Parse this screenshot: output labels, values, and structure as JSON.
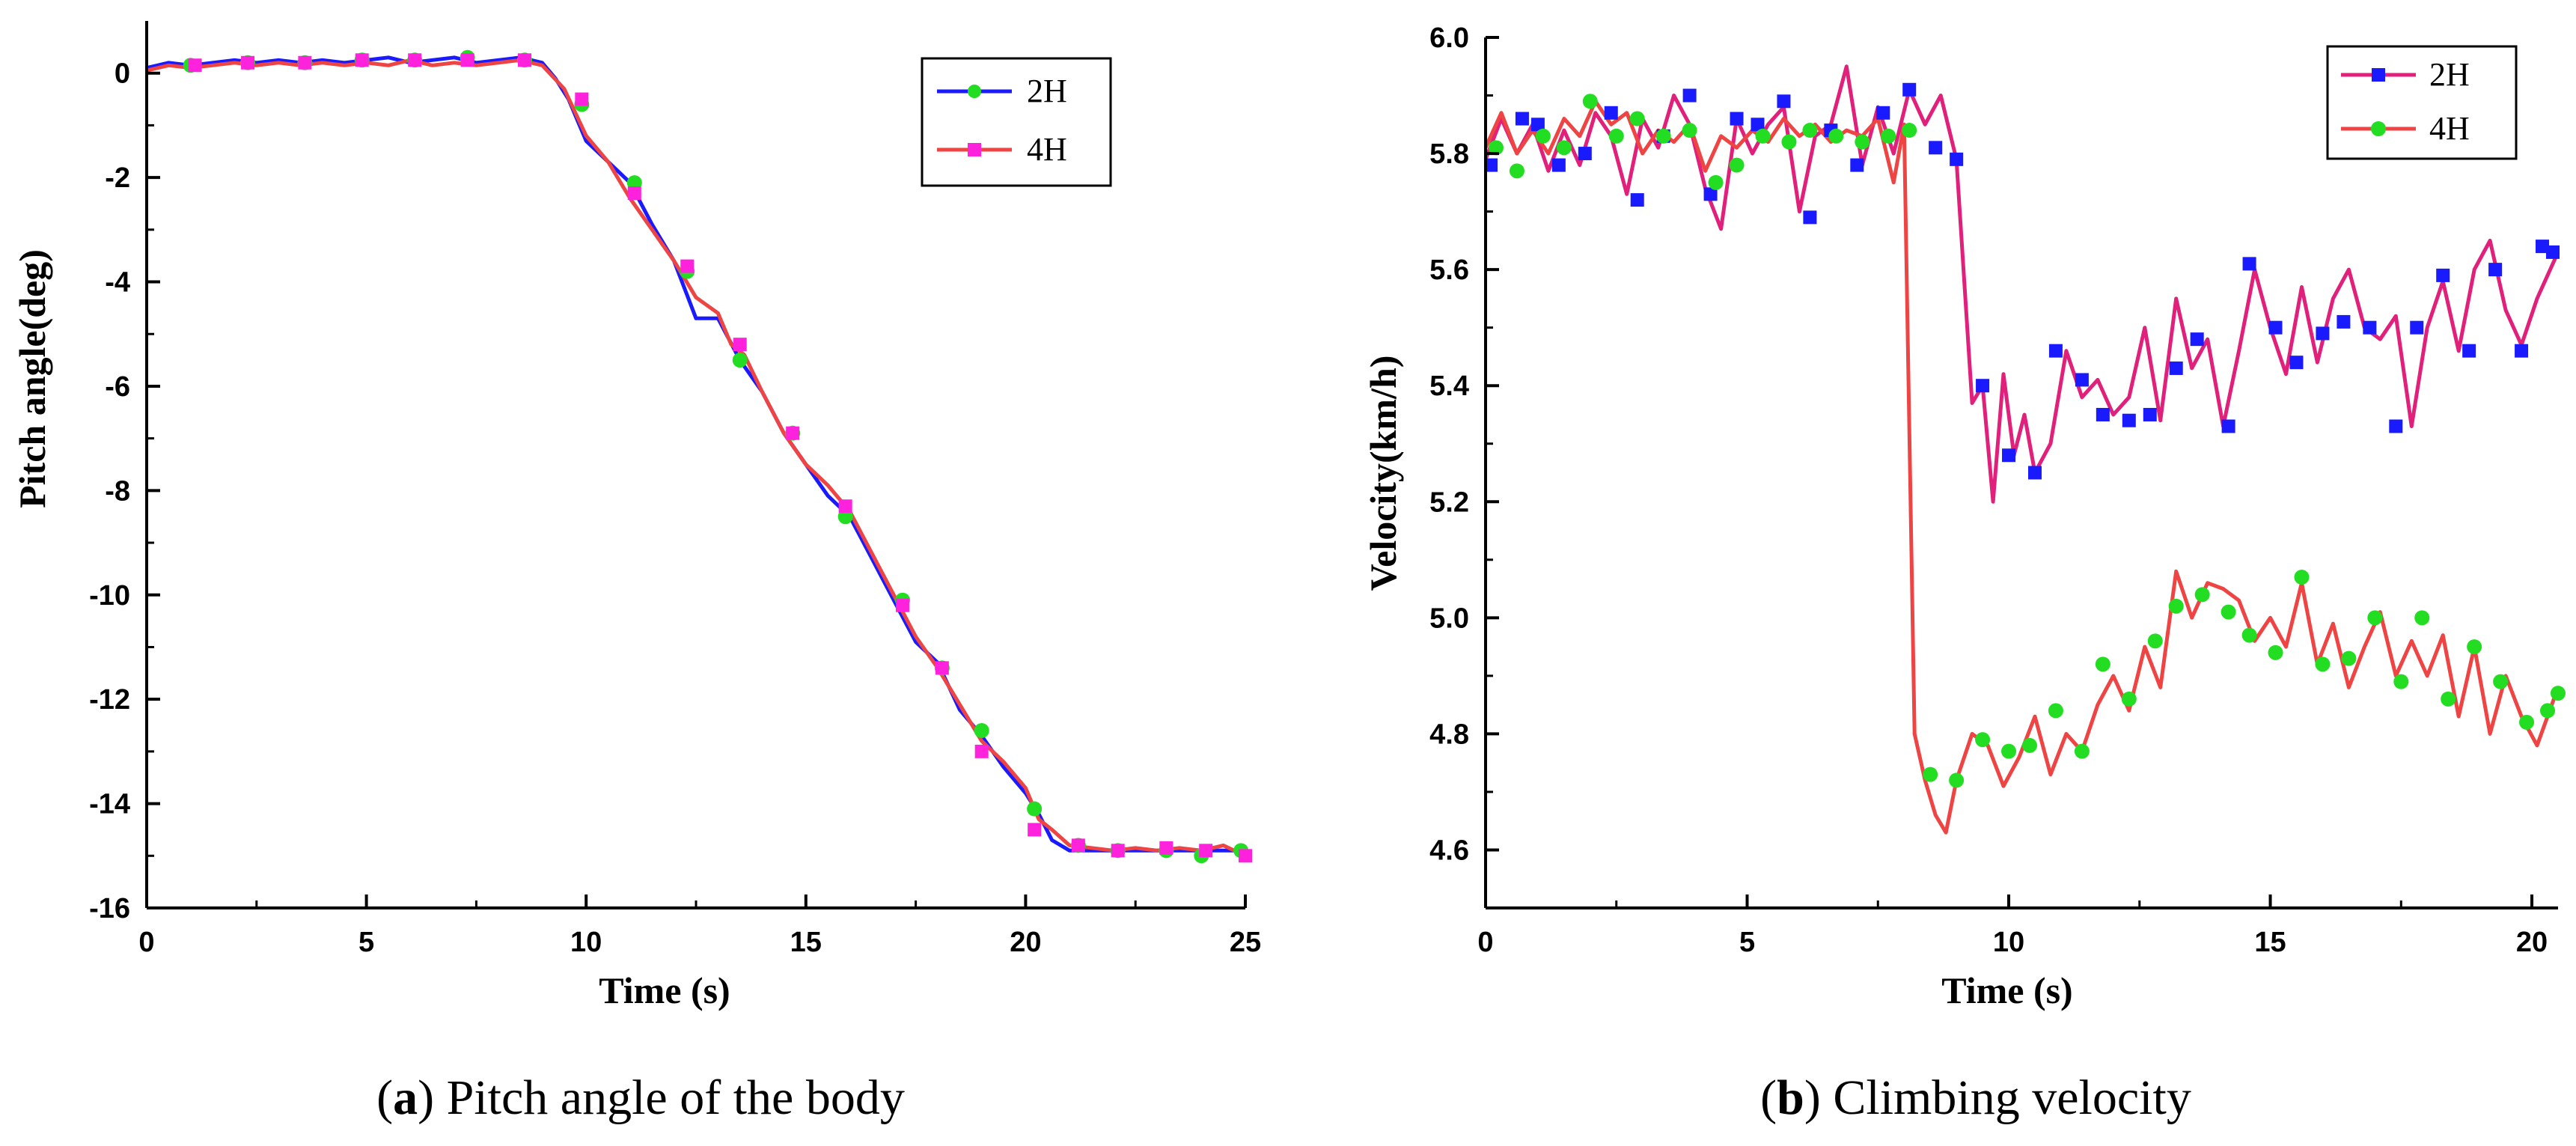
{
  "chart_data": [
    {
      "type": "line",
      "caption_letter": "a",
      "caption_text": "Pitch angle of the body",
      "xlabel": "Time (s)",
      "ylabel": "Pitch angle(deg)",
      "xlim": [
        0,
        25
      ],
      "ylim": [
        -16,
        1
      ],
      "xticks": [
        0,
        5,
        10,
        15,
        20,
        25
      ],
      "yticks": [
        0,
        -2,
        -4,
        -6,
        -8,
        -10,
        -12,
        -14,
        -16
      ],
      "legend_position": "top-right",
      "series": [
        {
          "name": "2H",
          "color": "#1a1aff",
          "marker": "circle",
          "marker_color": "#22dd22",
          "x": [
            0,
            0.5,
            1,
            1.5,
            2,
            2.5,
            3,
            3.5,
            4,
            4.5,
            5,
            5.5,
            6,
            6.5,
            7,
            7.5,
            8,
            8.5,
            9,
            9.3,
            9.6,
            10,
            10.5,
            11,
            11.5,
            12,
            12.5,
            13,
            13.5,
            14,
            14.5,
            15,
            15.5,
            16,
            16.5,
            17,
            17.5,
            18,
            18.5,
            19,
            19.5,
            20,
            20.3,
            20.6,
            21,
            21.5,
            22,
            22.5,
            23,
            23.5,
            24,
            24.5,
            25
          ],
          "y": [
            0.1,
            0.2,
            0.15,
            0.2,
            0.25,
            0.2,
            0.25,
            0.2,
            0.25,
            0.2,
            0.25,
            0.3,
            0.2,
            0.25,
            0.3,
            0.2,
            0.25,
            0.3,
            0.2,
            -0.1,
            -0.5,
            -1.3,
            -1.7,
            -2.1,
            -2.9,
            -3.6,
            -4.7,
            -4.7,
            -5.5,
            -6.1,
            -6.9,
            -7.5,
            -8.1,
            -8.5,
            -9.3,
            -10.1,
            -10.9,
            -11.3,
            -12.2,
            -12.7,
            -13.3,
            -13.8,
            -14.2,
            -14.7,
            -14.9,
            -14.9,
            -14.9,
            -14.9,
            -14.9,
            -14.9,
            -14.9,
            -14.9,
            -14.9
          ],
          "marker_x": [
            1,
            2.3,
            3.6,
            4.9,
            6.1,
            7.3,
            8.6,
            9.9,
            11.1,
            12.3,
            13.5,
            14.7,
            15.9,
            17.2,
            18.1,
            19,
            20.2,
            21.2,
            22.1,
            23.2,
            24,
            24.9
          ],
          "marker_y": [
            0.15,
            0.2,
            0.2,
            0.25,
            0.25,
            0.3,
            0.25,
            -0.6,
            -2.1,
            -3.8,
            -5.5,
            -6.9,
            -8.5,
            -10.1,
            -11.4,
            -12.6,
            -14.1,
            -14.8,
            -14.9,
            -14.9,
            -15,
            -14.9
          ]
        },
        {
          "name": "4H",
          "color": "#ee4444",
          "marker": "square",
          "marker_color": "#ff22dd",
          "x": [
            0,
            0.5,
            1,
            1.5,
            2,
            2.5,
            3,
            3.5,
            4,
            4.5,
            5,
            5.5,
            6,
            6.5,
            7,
            7.5,
            8,
            8.5,
            9,
            9.5,
            10,
            10.5,
            11,
            11.5,
            12,
            12.5,
            13,
            13.3,
            13.6,
            14,
            14.5,
            15,
            15.5,
            16,
            16.5,
            17,
            17.5,
            18,
            18.5,
            19,
            19.5,
            20,
            20.3,
            20.6,
            21,
            21.5,
            22,
            22.5,
            23,
            23.5,
            24,
            24.5,
            25
          ],
          "y": [
            0.05,
            0.15,
            0.1,
            0.15,
            0.2,
            0.15,
            0.2,
            0.15,
            0.2,
            0.15,
            0.2,
            0.15,
            0.25,
            0.15,
            0.2,
            0.15,
            0.2,
            0.25,
            0.15,
            -0.3,
            -1.2,
            -1.7,
            -2.4,
            -3.0,
            -3.6,
            -4.3,
            -4.6,
            -5.2,
            -5.4,
            -6.1,
            -6.9,
            -7.5,
            -7.9,
            -8.4,
            -9.2,
            -10.0,
            -10.8,
            -11.4,
            -12.1,
            -12.8,
            -13.2,
            -13.7,
            -14.3,
            -14.5,
            -14.8,
            -14.85,
            -14.9,
            -14.85,
            -14.9,
            -14.85,
            -14.9,
            -14.8,
            -15.0
          ],
          "marker_x": [
            1.1,
            2.3,
            3.6,
            4.9,
            6.1,
            7.3,
            8.6,
            9.9,
            11.1,
            12.3,
            13.5,
            14.7,
            15.9,
            17.2,
            18.1,
            19,
            20.2,
            21.2,
            22.1,
            23.2,
            24.1,
            25
          ],
          "marker_y": [
            0.15,
            0.2,
            0.2,
            0.25,
            0.25,
            0.25,
            0.25,
            -0.5,
            -2.3,
            -3.7,
            -5.2,
            -6.9,
            -8.3,
            -10.2,
            -11.4,
            -13.0,
            -14.5,
            -14.8,
            -14.9,
            -14.85,
            -14.9,
            -15.0
          ]
        }
      ]
    },
    {
      "type": "line",
      "caption_letter": "b",
      "caption_text": "Climbing velocity",
      "xlabel": "Time (s)",
      "ylabel": "Velocity(km/h)",
      "xlim": [
        0,
        20.5
      ],
      "ylim": [
        4.5,
        6.0
      ],
      "xticks": [
        0,
        5,
        10,
        15,
        20
      ],
      "yticks": [
        6.0,
        5.8,
        5.6,
        5.4,
        5.2,
        5.0,
        4.8,
        4.6
      ],
      "ytick_labels": [
        "6.0",
        "5.8",
        "5.6",
        "5.4",
        "5.2",
        "5.0",
        "4.8",
        "4.6"
      ],
      "legend_position": "top-right",
      "series": [
        {
          "name": "2H",
          "color": "#e0207a",
          "marker": "square",
          "marker_color": "#1a1aff",
          "x": [
            0,
            0.3,
            0.6,
            0.9,
            1.2,
            1.5,
            1.8,
            2.1,
            2.4,
            2.7,
            3,
            3.3,
            3.6,
            3.9,
            4.2,
            4.5,
            4.8,
            5.1,
            5.4,
            5.7,
            6,
            6.3,
            6.6,
            6.9,
            7.2,
            7.5,
            7.8,
            8.1,
            8.4,
            8.7,
            9,
            9.3,
            9.5,
            9.7,
            9.9,
            10.1,
            10.3,
            10.5,
            10.8,
            11.1,
            11.4,
            11.7,
            12,
            12.3,
            12.6,
            12.9,
            13.2,
            13.5,
            13.8,
            14.1,
            14.4,
            14.7,
            15,
            15.3,
            15.6,
            15.9,
            16.2,
            16.5,
            16.8,
            17.1,
            17.4,
            17.7,
            18,
            18.3,
            18.6,
            18.9,
            19.2,
            19.5,
            19.8,
            20.1,
            20.5
          ],
          "y": [
            5.79,
            5.86,
            5.8,
            5.85,
            5.77,
            5.84,
            5.78,
            5.87,
            5.83,
            5.73,
            5.86,
            5.81,
            5.9,
            5.85,
            5.74,
            5.67,
            5.86,
            5.8,
            5.85,
            5.88,
            5.7,
            5.83,
            5.85,
            5.95,
            5.78,
            5.88,
            5.8,
            5.91,
            5.85,
            5.9,
            5.79,
            5.37,
            5.4,
            5.2,
            5.42,
            5.28,
            5.35,
            5.25,
            5.3,
            5.46,
            5.38,
            5.41,
            5.35,
            5.38,
            5.5,
            5.34,
            5.55,
            5.43,
            5.48,
            5.33,
            5.46,
            5.6,
            5.5,
            5.42,
            5.57,
            5.44,
            5.55,
            5.6,
            5.5,
            5.48,
            5.52,
            5.33,
            5.5,
            5.58,
            5.46,
            5.6,
            5.65,
            5.53,
            5.47,
            5.55,
            5.63
          ],
          "marker_x": [
            0.1,
            0.7,
            1.0,
            1.4,
            1.9,
            2.4,
            2.9,
            3.4,
            3.9,
            4.3,
            4.8,
            5.2,
            5.7,
            6.2,
            6.6,
            7.1,
            7.6,
            8.1,
            8.6,
            9.0,
            9.5,
            10.0,
            10.5,
            10.9,
            11.4,
            11.8,
            12.3,
            12.7,
            13.2,
            13.6,
            14.2,
            14.6,
            15.1,
            15.5,
            16.0,
            16.4,
            16.9,
            17.4,
            17.8,
            18.3,
            18.8,
            19.3,
            19.8,
            20.2,
            20.4
          ],
          "marker_y": [
            5.78,
            5.86,
            5.85,
            5.78,
            5.8,
            5.87,
            5.72,
            5.83,
            5.9,
            5.73,
            5.86,
            5.85,
            5.89,
            5.69,
            5.84,
            5.78,
            5.87,
            5.91,
            5.81,
            5.79,
            5.4,
            5.28,
            5.25,
            5.46,
            5.41,
            5.35,
            5.34,
            5.35,
            5.43,
            5.48,
            5.33,
            5.61,
            5.5,
            5.44,
            5.49,
            5.51,
            5.5,
            5.33,
            5.5,
            5.59,
            5.46,
            5.6,
            5.46,
            5.64,
            5.63
          ]
        },
        {
          "name": "4H",
          "color": "#ee4444",
          "marker": "circle",
          "marker_color": "#22dd22",
          "x": [
            0,
            0.3,
            0.6,
            0.9,
            1.2,
            1.5,
            1.8,
            2.1,
            2.4,
            2.7,
            3,
            3.3,
            3.6,
            3.9,
            4.2,
            4.5,
            4.8,
            5.1,
            5.4,
            5.7,
            6,
            6.3,
            6.6,
            6.9,
            7.2,
            7.5,
            7.8,
            8.0,
            8.2,
            8.4,
            8.6,
            8.8,
            9.0,
            9.3,
            9.6,
            9.9,
            10.2,
            10.5,
            10.8,
            11.1,
            11.4,
            11.7,
            12,
            12.3,
            12.6,
            12.9,
            13.2,
            13.5,
            13.8,
            14.1,
            14.4,
            14.7,
            15,
            15.3,
            15.6,
            15.9,
            16.2,
            16.5,
            16.8,
            17.1,
            17.4,
            17.7,
            18,
            18.3,
            18.6,
            18.9,
            19.2,
            19.5,
            19.8,
            20.1,
            20.5
          ],
          "y": [
            5.81,
            5.87,
            5.8,
            5.84,
            5.8,
            5.86,
            5.83,
            5.89,
            5.85,
            5.87,
            5.8,
            5.84,
            5.82,
            5.85,
            5.77,
            5.83,
            5.81,
            5.84,
            5.82,
            5.86,
            5.83,
            5.85,
            5.82,
            5.84,
            5.83,
            5.86,
            5.75,
            5.85,
            4.8,
            4.72,
            4.66,
            4.63,
            4.72,
            4.8,
            4.78,
            4.71,
            4.76,
            4.83,
            4.73,
            4.8,
            4.77,
            4.85,
            4.9,
            4.84,
            4.95,
            4.88,
            5.08,
            5.0,
            5.06,
            5.05,
            5.03,
            4.96,
            5.0,
            4.95,
            5.06,
            4.92,
            4.99,
            4.88,
            4.95,
            5.01,
            4.9,
            4.96,
            4.9,
            4.97,
            4.83,
            4.95,
            4.8,
            4.9,
            4.83,
            4.78,
            4.88
          ],
          "marker_x": [
            0.2,
            0.6,
            1.1,
            1.5,
            2.0,
            2.5,
            2.9,
            3.4,
            3.9,
            4.4,
            4.8,
            5.3,
            5.8,
            6.2,
            6.7,
            7.2,
            7.7,
            8.1,
            8.5,
            9.0,
            9.5,
            10.0,
            10.4,
            10.9,
            11.4,
            11.8,
            12.3,
            12.8,
            13.2,
            13.7,
            14.2,
            14.6,
            15.1,
            15.6,
            16.0,
            16.5,
            17.0,
            17.5,
            17.9,
            18.4,
            18.9,
            19.4,
            19.9,
            20.3,
            20.5
          ],
          "marker_y": [
            5.81,
            5.77,
            5.83,
            5.81,
            5.89,
            5.83,
            5.86,
            5.83,
            5.84,
            5.75,
            5.78,
            5.83,
            5.82,
            5.84,
            5.83,
            5.82,
            5.83,
            5.84,
            4.73,
            4.72,
            4.79,
            4.77,
            4.78,
            4.84,
            4.77,
            4.92,
            4.86,
            4.96,
            5.02,
            5.04,
            5.01,
            4.97,
            4.94,
            5.07,
            4.92,
            4.93,
            5.0,
            4.89,
            5.0,
            4.86,
            4.95,
            4.89,
            4.82,
            4.84,
            4.87
          ]
        }
      ]
    }
  ]
}
